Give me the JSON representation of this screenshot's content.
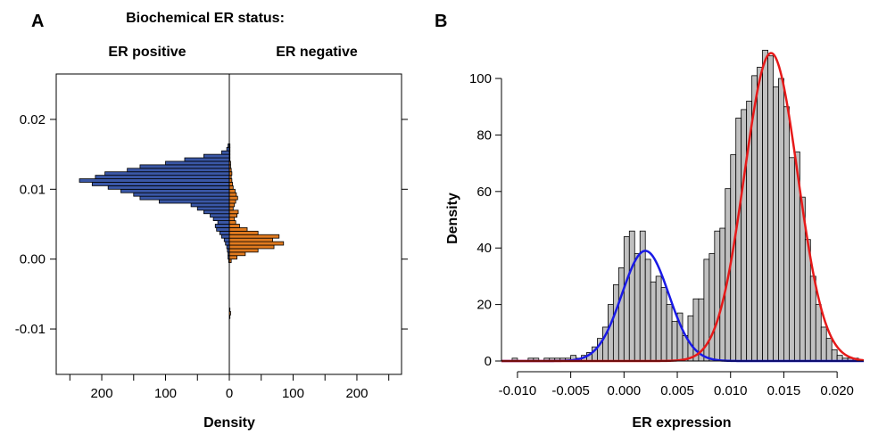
{
  "panel_a": {
    "letter": "A",
    "header": "Biochemical ER status:",
    "left_label": "ER positive",
    "right_label": "ER negative"
  },
  "panel_b": {
    "letter": "B"
  },
  "chart_data": [
    {
      "type": "bar",
      "orientation": "horizontal-back-to-back",
      "xlabel": "Density",
      "ylabel": "",
      "xticks": [
        "200",
        "100",
        "0",
        "100",
        "200"
      ],
      "yticks": [
        "0.02",
        "0.01",
        "0.00",
        "-0.01"
      ],
      "x_range": [
        -270,
        270
      ],
      "y_range": [
        -0.0165,
        0.0265
      ],
      "bin_width": 0.0005,
      "colors": {
        "positive": "#3a57a6",
        "negative": "#e07a1f"
      },
      "bins": [
        {
          "y": -0.0085,
          "pos": 0,
          "neg": 1
        },
        {
          "y": -0.008,
          "pos": 0,
          "neg": 2
        },
        {
          "y": -0.0075,
          "pos": 0,
          "neg": 1
        },
        {
          "y": -0.0005,
          "pos": 1,
          "neg": 3
        },
        {
          "y": 0.0,
          "pos": 2,
          "neg": 12
        },
        {
          "y": 0.0005,
          "pos": 2,
          "neg": 25
        },
        {
          "y": 0.001,
          "pos": 3,
          "neg": 45
        },
        {
          "y": 0.0015,
          "pos": 4,
          "neg": 70
        },
        {
          "y": 0.002,
          "pos": 6,
          "neg": 85
        },
        {
          "y": 0.0025,
          "pos": 8,
          "neg": 68
        },
        {
          "y": 0.003,
          "pos": 12,
          "neg": 78
        },
        {
          "y": 0.0035,
          "pos": 15,
          "neg": 45
        },
        {
          "y": 0.004,
          "pos": 20,
          "neg": 28
        },
        {
          "y": 0.0045,
          "pos": 22,
          "neg": 16
        },
        {
          "y": 0.005,
          "pos": 18,
          "neg": 10
        },
        {
          "y": 0.0055,
          "pos": 25,
          "neg": 8
        },
        {
          "y": 0.006,
          "pos": 30,
          "neg": 12
        },
        {
          "y": 0.0065,
          "pos": 40,
          "neg": 14
        },
        {
          "y": 0.007,
          "pos": 50,
          "neg": 6
        },
        {
          "y": 0.0075,
          "pos": 60,
          "neg": 8
        },
        {
          "y": 0.008,
          "pos": 110,
          "neg": 10
        },
        {
          "y": 0.0085,
          "pos": 140,
          "neg": 13
        },
        {
          "y": 0.009,
          "pos": 150,
          "neg": 11
        },
        {
          "y": 0.0095,
          "pos": 170,
          "neg": 9
        },
        {
          "y": 0.01,
          "pos": 190,
          "neg": 6
        },
        {
          "y": 0.0105,
          "pos": 215,
          "neg": 5
        },
        {
          "y": 0.011,
          "pos": 235,
          "neg": 4
        },
        {
          "y": 0.0115,
          "pos": 210,
          "neg": 3
        },
        {
          "y": 0.012,
          "pos": 195,
          "neg": 4
        },
        {
          "y": 0.0125,
          "pos": 160,
          "neg": 3
        },
        {
          "y": 0.013,
          "pos": 140,
          "neg": 2
        },
        {
          "y": 0.0135,
          "pos": 100,
          "neg": 2
        },
        {
          "y": 0.014,
          "pos": 70,
          "neg": 1
        },
        {
          "y": 0.0145,
          "pos": 40,
          "neg": 1
        },
        {
          "y": 0.015,
          "pos": 12,
          "neg": 1
        },
        {
          "y": 0.0155,
          "pos": 4,
          "neg": 1
        },
        {
          "y": 0.016,
          "pos": 2,
          "neg": 1
        }
      ]
    },
    {
      "type": "bar",
      "subtype": "histogram-with-density-curves",
      "xlabel": "ER  expression",
      "ylabel": "Density",
      "xticks": [
        "-0.010",
        "-0.005",
        "0.000",
        "0.005",
        "0.010",
        "0.015",
        "0.020"
      ],
      "yticks": [
        "0",
        "20",
        "40",
        "60",
        "80",
        "100"
      ],
      "x_range": [
        -0.0115,
        0.0225
      ],
      "y_range": [
        0,
        112
      ],
      "bin_width": 0.0005,
      "bar_color": "#c0c0c0",
      "bins": [
        {
          "x": -0.0105,
          "y": 1
        },
        {
          "x": -0.01,
          "y": 0
        },
        {
          "x": -0.0095,
          "y": 0
        },
        {
          "x": -0.009,
          "y": 1
        },
        {
          "x": -0.0085,
          "y": 1
        },
        {
          "x": -0.008,
          "y": 0
        },
        {
          "x": -0.0075,
          "y": 1
        },
        {
          "x": -0.007,
          "y": 1
        },
        {
          "x": -0.0065,
          "y": 1
        },
        {
          "x": -0.006,
          "y": 1
        },
        {
          "x": -0.0055,
          "y": 1
        },
        {
          "x": -0.005,
          "y": 2
        },
        {
          "x": -0.0045,
          "y": 1
        },
        {
          "x": -0.004,
          "y": 2
        },
        {
          "x": -0.0035,
          "y": 3
        },
        {
          "x": -0.003,
          "y": 5
        },
        {
          "x": -0.0025,
          "y": 8
        },
        {
          "x": -0.002,
          "y": 12
        },
        {
          "x": -0.0015,
          "y": 20
        },
        {
          "x": -0.001,
          "y": 27
        },
        {
          "x": -0.0005,
          "y": 33
        },
        {
          "x": 0.0,
          "y": 44
        },
        {
          "x": 0.0005,
          "y": 46
        },
        {
          "x": 0.001,
          "y": 38
        },
        {
          "x": 0.0015,
          "y": 46
        },
        {
          "x": 0.002,
          "y": 36
        },
        {
          "x": 0.0025,
          "y": 28
        },
        {
          "x": 0.003,
          "y": 30
        },
        {
          "x": 0.0035,
          "y": 26
        },
        {
          "x": 0.004,
          "y": 20
        },
        {
          "x": 0.0045,
          "y": 14
        },
        {
          "x": 0.005,
          "y": 17
        },
        {
          "x": 0.0055,
          "y": 9
        },
        {
          "x": 0.006,
          "y": 16
        },
        {
          "x": 0.0065,
          "y": 22
        },
        {
          "x": 0.007,
          "y": 22
        },
        {
          "x": 0.0075,
          "y": 36
        },
        {
          "x": 0.008,
          "y": 38
        },
        {
          "x": 0.0085,
          "y": 46
        },
        {
          "x": 0.009,
          "y": 47
        },
        {
          "x": 0.0095,
          "y": 61
        },
        {
          "x": 0.01,
          "y": 73
        },
        {
          "x": 0.0105,
          "y": 86
        },
        {
          "x": 0.011,
          "y": 89
        },
        {
          "x": 0.0115,
          "y": 92
        },
        {
          "x": 0.012,
          "y": 101
        },
        {
          "x": 0.0125,
          "y": 104
        },
        {
          "x": 0.013,
          "y": 110
        },
        {
          "x": 0.0135,
          "y": 108
        },
        {
          "x": 0.014,
          "y": 97
        },
        {
          "x": 0.0145,
          "y": 100
        },
        {
          "x": 0.015,
          "y": 90
        },
        {
          "x": 0.0155,
          "y": 72
        },
        {
          "x": 0.016,
          "y": 74
        },
        {
          "x": 0.0165,
          "y": 58
        },
        {
          "x": 0.017,
          "y": 43
        },
        {
          "x": 0.0175,
          "y": 30
        },
        {
          "x": 0.018,
          "y": 20
        },
        {
          "x": 0.0185,
          "y": 12
        },
        {
          "x": 0.019,
          "y": 8
        },
        {
          "x": 0.0195,
          "y": 4
        },
        {
          "x": 0.02,
          "y": 2
        },
        {
          "x": 0.0205,
          "y": 1
        },
        {
          "x": 0.021,
          "y": 1
        },
        {
          "x": 0.0215,
          "y": 1
        }
      ],
      "curves": [
        {
          "color": "#1a1ae6",
          "mean": 0.002,
          "sd": 0.0022,
          "peak": 39
        },
        {
          "color": "#e61a1a",
          "mean": 0.0138,
          "sd": 0.0025,
          "peak": 109
        }
      ]
    }
  ]
}
